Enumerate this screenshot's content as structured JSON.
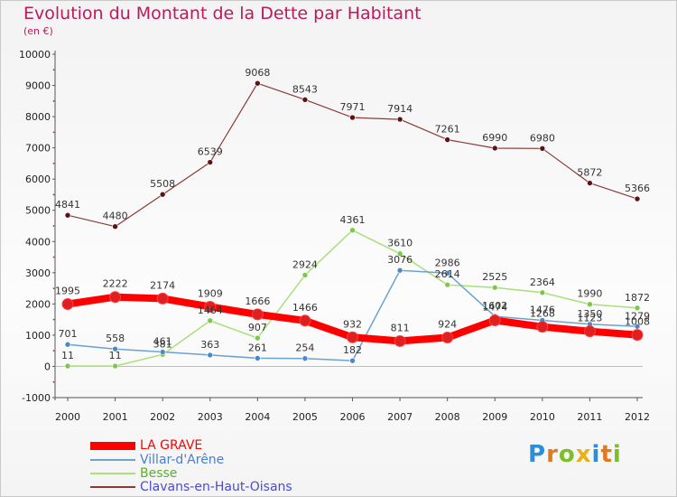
{
  "page": {
    "title": "Evolution du Montant de la Dette par Habitant",
    "unit": "(en €)"
  },
  "logo": {
    "text": "Proxiti",
    "letters": [
      "P",
      "r",
      "o",
      "x",
      "i",
      "t",
      "i"
    ],
    "colors": [
      "#2a8fd8",
      "#e07a20",
      "#7cbf2b",
      "#e9b017",
      "#2a8fd8",
      "#e07a20",
      "#7cbf2b"
    ]
  },
  "chart_data": {
    "type": "line",
    "title": "Evolution du Montant de la Dette par Habitant",
    "subtitle": "(en €)",
    "xlabel": "",
    "ylabel": "",
    "ylim": [
      -1000,
      10000
    ],
    "yticks": [
      -1000,
      0,
      1000,
      2000,
      3000,
      4000,
      5000,
      6000,
      7000,
      8000,
      9000,
      10000
    ],
    "x": [
      "2000",
      "2001",
      "2002",
      "2003",
      "2004",
      "2005",
      "2006",
      "2007",
      "2008",
      "2009",
      "2010",
      "2011",
      "2012"
    ],
    "grid": false,
    "legend_position": "bottom-left",
    "series": [
      {
        "name": "LA GRAVE",
        "color": "#ff0000",
        "marker": "#e02020",
        "width": 8,
        "values": [
          1995,
          2222,
          2174,
          1909,
          1666,
          1466,
          932,
          811,
          924,
          1474,
          1268,
          1123,
          1008
        ],
        "labels": [
          "1995",
          "2222",
          "2174",
          "1909",
          "1666",
          "1466",
          "932",
          "811",
          "924",
          "1474",
          "1268",
          "1123",
          "1008"
        ]
      },
      {
        "name": "Villar-d'Arêne",
        "color": "#6aa2d0",
        "marker": "#4b88c5",
        "width": 1.5,
        "values": [
          701,
          558,
          461,
          363,
          261,
          254,
          182,
          3076,
          2986,
          1602,
          1476,
          1350,
          1279
        ],
        "labels": [
          "701",
          "558",
          "461",
          "363",
          "261",
          "254",
          "182",
          "3076",
          "2986",
          "1602",
          "1476",
          "1350",
          "1279"
        ]
      },
      {
        "name": "Besse",
        "color": "#a8e07a",
        "marker": "#7cc84a",
        "width": 1.5,
        "values": [
          11,
          11,
          381,
          1464,
          907,
          2924,
          4361,
          3610,
          2614,
          2525,
          2364,
          1990,
          1872
        ],
        "labels": [
          "11",
          "11",
          "381",
          "1464",
          "907",
          "2924",
          "4361",
          "3610",
          "2614",
          "2525",
          "2364",
          "1990",
          "1872"
        ]
      },
      {
        "name": "Clavans-en-Haut-Oisans",
        "color": "#8a3a3a",
        "marker": "#5a1414",
        "width": 1.2,
        "values": [
          4841,
          4480,
          5508,
          6539,
          9068,
          8543,
          7971,
          7914,
          7261,
          6990,
          6980,
          5872,
          5366
        ],
        "labels": [
          "4841",
          "4480",
          "5508",
          "6539",
          "9068",
          "8543",
          "7971",
          "7914",
          "7261",
          "6990",
          "6980",
          "5872",
          "5366"
        ]
      }
    ]
  }
}
